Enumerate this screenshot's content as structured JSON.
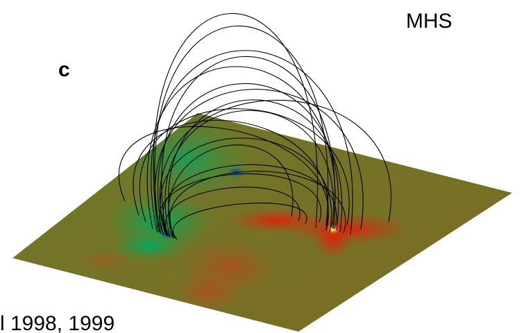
{
  "labels": {
    "model": "MHS",
    "panel": "c",
    "citation": "l  1998, 1999"
  }
}
